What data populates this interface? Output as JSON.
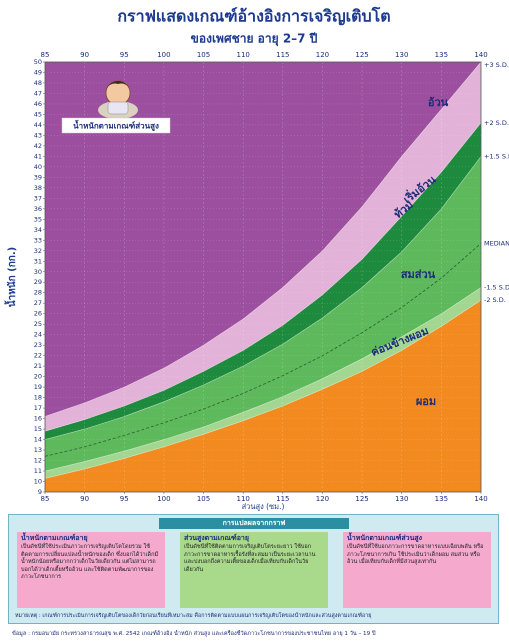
{
  "chart_data": {
    "type": "line",
    "title": "กราฟแสดงเกณฑ์อ้างอิงการเจริญเติบโต",
    "subtitle": "ของเพศชาย อายุ 2–7 ปี",
    "x_label": "ส่วนสูง (ซม.)",
    "y_label": "น้ำหนัก (กก.)",
    "box_label": "น้ำหนักตามเกณฑ์ส่วนสูง",
    "background": "#9b4f9e",
    "x": [
      85,
      90,
      95,
      100,
      105,
      110,
      115,
      120,
      125,
      130,
      135,
      140
    ],
    "series": [
      {
        "name": "+3 S.D.",
        "color": "#e2b2d8",
        "values": [
          16.2,
          17.5,
          19.0,
          20.8,
          23.0,
          25.5,
          28.5,
          32.0,
          36.2,
          41.0,
          45.5,
          50.0
        ]
      },
      {
        "name": "+2 S.D.",
        "color": "#1e8a3d",
        "values": [
          14.8,
          15.9,
          17.2,
          18.7,
          20.5,
          22.5,
          24.9,
          27.8,
          31.2,
          35.3,
          39.5,
          44.2
        ]
      },
      {
        "name": "+1.5 S.D.",
        "color": "#5db95b",
        "values": [
          14.0,
          15.0,
          16.2,
          17.6,
          19.2,
          21.0,
          23.1,
          25.6,
          28.5,
          31.9,
          36.0,
          41.0
        ]
      },
      {
        "name": "MEDIAN",
        "color": "#2f5f36",
        "dashed": true,
        "values": [
          12.4,
          13.3,
          14.4,
          15.6,
          16.9,
          18.4,
          20.1,
          22.0,
          24.2,
          26.6,
          29.4,
          32.7
        ]
      },
      {
        "name": "-1.5 S.D.",
        "color": "#a3d691",
        "values": [
          11.0,
          11.9,
          12.9,
          14.0,
          15.2,
          16.6,
          18.1,
          19.8,
          21.7,
          23.8,
          26.0,
          28.5
        ]
      },
      {
        "name": "-2 S.D.",
        "color": "#f28a1f",
        "values": [
          10.3,
          11.2,
          12.2,
          13.3,
          14.5,
          15.8,
          17.2,
          18.8,
          20.5,
          22.5,
          24.8,
          27.3
        ]
      }
    ],
    "annotations": [
      "อ้วน",
      "เริ่มอ้วน",
      "ท้วม",
      "สมส่วน",
      "ค่อนข้างผอม",
      "ผอม"
    ],
    "xlim": [
      85,
      140
    ],
    "ylim": [
      9,
      50
    ],
    "xticks": [
      85,
      90,
      95,
      100,
      105,
      110,
      115,
      120,
      125,
      130,
      135,
      140
    ],
    "yticks": [
      9,
      10,
      11,
      12,
      13,
      14,
      15,
      16,
      17,
      18,
      19,
      20,
      21,
      22,
      23,
      24,
      25,
      26,
      27,
      28,
      29,
      30,
      31,
      32,
      33,
      34,
      35,
      36,
      37,
      38,
      39,
      40,
      41,
      42,
      43,
      44,
      45,
      46,
      47,
      48,
      49,
      50
    ],
    "grid": true
  },
  "legend_panel": {
    "title": "การแปลผลจากกราฟ",
    "boxes": [
      {
        "heading": "น้ำหนักตามเกณฑ์อายุ",
        "text": "เป็นดัชนีที่ใช้ประเมินภาวะการเจริญเติบโตโดยรวม ใช้ติดตามการเปลี่ยนแปลงน้ำหนักของเด็ก ซึ่งบอกได้ว่าเด็กมีน้ำหนักน้อยหรือมากกว่าเด็กในวัยเดียวกัน แต่ไม่สามารถบอกได้ว่าเด็กเตี้ยหรืออ้วน และใช้ติดตามพัฒนาการของภาวะโภชนาการ"
      },
      {
        "heading": "ส่วนสูงตามเกณฑ์อายุ",
        "text": "เป็นดัชนีที่ใช้ติดตามการเจริญเติบโตระยะยาว ใช้บอกภาวะการขาดอาหารเรื้อรังที่สะสมมาเป็นระยะเวลานาน และบ่งบอกถึงความเตี้ยของเด็กเมื่อเทียบกับเด็กในวัยเดียวกัน"
      },
      {
        "heading": "น้ำหนักตามเกณฑ์ส่วนสูง",
        "text": "เป็นดัชนีที่ใช้บอกภาวะการขาดอาหารแบบเฉียบพลัน หรือภาวะโภชนาการเกิน ใช้ประเมินว่าเด็กผอม สมส่วน หรืออ้วน เมื่อเทียบกับเด็กที่มีส่วนสูงเท่ากัน"
      }
    ],
    "note": "หมายเหตุ : เกณฑ์การประเมินการเจริญเติบโตของเด็กวัยก่อนเรียนที่เหมาะสม คือการติดตามแบบแผนการเจริญเติบโตของน้ำหนักและส่วนสูงตามเกณฑ์อายุ",
    "source": "ข้อมูล : กรมอนามัย กระทรวงสาธารณสุข พ.ศ. 2542 เกณฑ์อ้างอิง น้ำหนัก ส่วนสูง และเครื่องชี้วัดภาวะโภชนาการของประชาชนไทย อายุ 1 วัน – 19 ปี"
  }
}
